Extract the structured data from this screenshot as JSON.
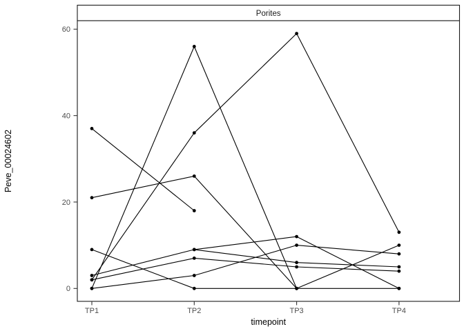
{
  "figure": {
    "facet_title": "Porites",
    "xlabel": "timepoint",
    "ylabel": "Peve_00024602"
  },
  "chart_data": {
    "type": "line",
    "title": "Porites",
    "xlabel": "timepoint",
    "ylabel": "Peve_00024602",
    "x_categories": [
      "TP1",
      "TP2",
      "TP3",
      "TP4"
    ],
    "series": [
      {
        "values": [
          37,
          18,
          null,
          null
        ]
      },
      {
        "values": [
          21,
          26,
          0,
          10
        ]
      },
      {
        "values": [
          0,
          56,
          0,
          null
        ]
      },
      {
        "values": [
          2,
          36,
          59,
          13
        ]
      },
      {
        "values": [
          9,
          0,
          0,
          0
        ]
      },
      {
        "values": [
          3,
          9,
          12,
          0
        ]
      },
      {
        "values": [
          null,
          9,
          6,
          5
        ]
      },
      {
        "values": [
          2,
          7,
          5,
          4
        ]
      },
      {
        "values": [
          0,
          3,
          10,
          8
        ]
      }
    ],
    "yticks": [
      0,
      20,
      40,
      60
    ],
    "ylim": [
      -3,
      62
    ],
    "grid": false,
    "legend_position": "none",
    "marker": "point",
    "line_color": "#000000",
    "point_color": "#000000",
    "panel_background": "#ffffff",
    "panel_border_color": "#1a1a1a",
    "strip_background": "#ffffff",
    "tick_label_color": "#4d4d4d"
  }
}
